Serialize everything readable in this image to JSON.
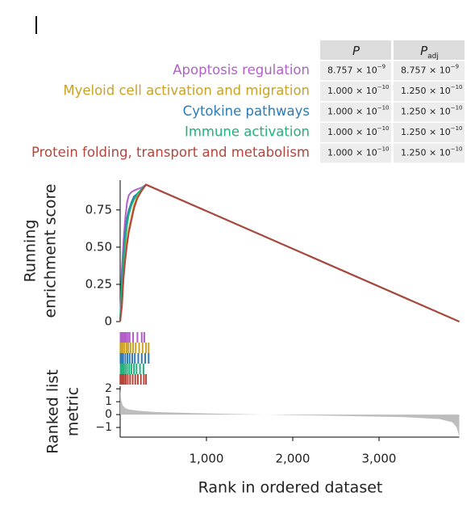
{
  "chart_data": [
    {
      "type": "line",
      "ylabel": [
        "Running",
        "enrichment score"
      ],
      "xlim": [
        0,
        3930
      ],
      "ylim": [
        0,
        0.95
      ],
      "yticks": [
        0,
        0.25,
        {
          "value": 0.5,
          "label": "0.50"
        },
        0.75
      ],
      "x": [
        0,
        20,
        40,
        60,
        80,
        100,
        130,
        160,
        200,
        250,
        300,
        3930
      ],
      "series": [
        {
          "name": "Apoptosis regulation",
          "color": "#b35fc9",
          "values": [
            0,
            0.35,
            0.55,
            0.7,
            0.8,
            0.85,
            0.87,
            0.88,
            0.89,
            0.9,
            0.92,
            0
          ],
          "hits": [
            5,
            15,
            25,
            40,
            55,
            70,
            90,
            110,
            150,
            200,
            250,
            280
          ]
        },
        {
          "name": "Myeloid cell activation and migration",
          "color": "#c9a227",
          "values": [
            0,
            0.15,
            0.3,
            0.45,
            0.55,
            0.62,
            0.7,
            0.78,
            0.84,
            0.88,
            0.92,
            0
          ],
          "hits": [
            3,
            12,
            30,
            50,
            75,
            95,
            120,
            150,
            180,
            220,
            260,
            300,
            330
          ]
        },
        {
          "name": "Cytokine pathways",
          "color": "#2c7bb6",
          "values": [
            0,
            0.3,
            0.45,
            0.6,
            0.7,
            0.75,
            0.8,
            0.84,
            0.86,
            0.89,
            0.92,
            0
          ],
          "hits": [
            4,
            18,
            35,
            60,
            85,
            110,
            140,
            170,
            210,
            250,
            290,
            330
          ]
        },
        {
          "name": "Immune activation",
          "color": "#1db37a",
          "values": [
            0,
            0.25,
            0.42,
            0.55,
            0.65,
            0.72,
            0.78,
            0.82,
            0.86,
            0.89,
            0.92,
            0
          ],
          "hits": [
            6,
            20,
            38,
            58,
            80,
            105,
            130,
            160,
            190,
            230,
            270
          ]
        },
        {
          "name": "Protein folding, transport and metabolism",
          "color": "#b5443a",
          "values": [
            0,
            0.1,
            0.3,
            0.42,
            0.52,
            0.6,
            0.68,
            0.76,
            0.83,
            0.88,
            0.92,
            0
          ],
          "hits": [
            2,
            14,
            28,
            45,
            65,
            88,
            115,
            145,
            175,
            205,
            240,
            275,
            300
          ]
        }
      ]
    },
    {
      "type": "area",
      "ylabel": [
        "Ranked list",
        "metric"
      ],
      "xlabel": "Rank in ordered dataset",
      "color": "#bdbdbd",
      "xlim": [
        0,
        3930
      ],
      "ylim": [
        -1.75,
        2.2
      ],
      "xticks": [
        {
          "value": 1000,
          "label": "1,000"
        },
        {
          "value": 2000,
          "label": "2,000"
        },
        {
          "value": 3000,
          "label": "3,000"
        }
      ],
      "yticks": [
        2,
        1,
        0,
        {
          "value": -1,
          "label": "−1"
        }
      ],
      "x": [
        0,
        10,
        30,
        60,
        100,
        200,
        400,
        800,
        1500,
        2500,
        3300,
        3700,
        3850,
        3900,
        3930
      ],
      "values": [
        2.0,
        1.2,
        0.7,
        0.5,
        0.4,
        0.3,
        0.2,
        0.12,
        0.02,
        -0.1,
        -0.2,
        -0.35,
        -0.6,
        -1.0,
        -1.7
      ]
    }
  ],
  "table": {
    "header": [
      {
        "main": "P"
      },
      {
        "main": "P",
        "sub": "adj"
      }
    ],
    "rows": [
      [
        {
          "mantissa": "8.757 × 10",
          "exp": "−9"
        },
        {
          "mantissa": "8.757 × 10",
          "exp": "−9"
        }
      ],
      [
        {
          "mantissa": "1.000 × 10",
          "exp": "−10"
        },
        {
          "mantissa": "1.250 × 10",
          "exp": "−10"
        }
      ],
      [
        {
          "mantissa": "1.000 × 10",
          "exp": "−10"
        },
        {
          "mantissa": "1.250 × 10",
          "exp": "−10"
        }
      ],
      [
        {
          "mantissa": "1.000 × 10",
          "exp": "−10"
        },
        {
          "mantissa": "1.250 × 10",
          "exp": "−10"
        }
      ],
      [
        {
          "mantissa": "1.000 × 10",
          "exp": "−10"
        },
        {
          "mantissa": "1.250 × 10",
          "exp": "−10"
        }
      ]
    ]
  }
}
